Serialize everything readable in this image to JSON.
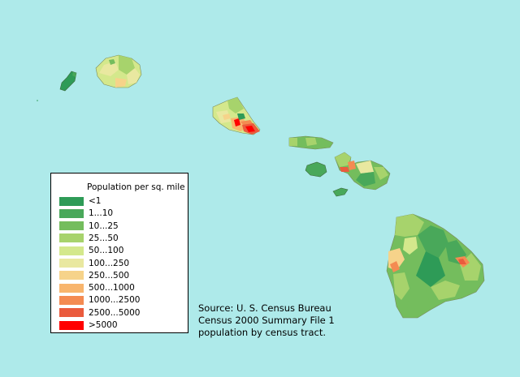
{
  "legend": {
    "title": "Population per sq. mile",
    "items": [
      {
        "label": "<1",
        "color": "#2e9b57"
      },
      {
        "label": "1...10",
        "color": "#49a85a"
      },
      {
        "label": "10...25",
        "color": "#74bd5d"
      },
      {
        "label": "25...50",
        "color": "#a7d36c"
      },
      {
        "label": "50...100",
        "color": "#d4e88c"
      },
      {
        "label": "100...250",
        "color": "#e9e8a0"
      },
      {
        "label": "250...500",
        "color": "#f6d38a"
      },
      {
        "label": "500...1000",
        "color": "#f8b56d"
      },
      {
        "label": "1000...2500",
        "color": "#f48b52"
      },
      {
        "label": "2500...5000",
        "color": "#ea5b3d"
      },
      {
        "label": ">5000",
        "color": "#ff0000"
      }
    ]
  },
  "source": {
    "line1": "Source: U. S. Census Bureau",
    "line2": "Census 2000 Summary File 1",
    "line3": "population by census tract."
  },
  "colors": {
    "ocean": "#aeeaea",
    "coast": "#7a8a5a"
  }
}
